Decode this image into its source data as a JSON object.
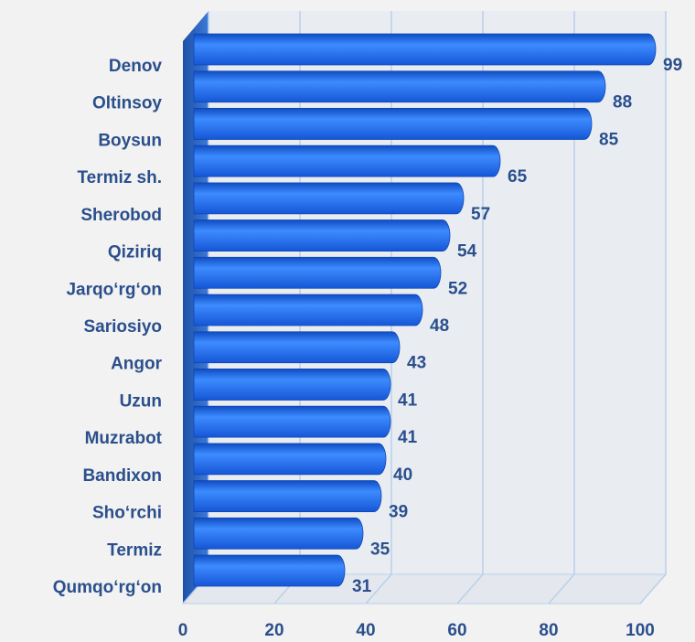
{
  "chart_data": {
    "type": "bar",
    "orientation": "horizontal",
    "categories": [
      "Denov",
      "Oltinsoy",
      "Boysun",
      "Termiz sh.",
      "Sherobod",
      "Qiziriq",
      "Jarqo‘rg‘on",
      "Sariosiyo",
      "Angor",
      "Uzun",
      "Muzrabot",
      "Bandixon",
      "Sho‘rchi",
      "Termiz",
      "Qumqo‘rg‘on"
    ],
    "values": [
      99,
      88,
      85,
      65,
      57,
      54,
      52,
      48,
      43,
      41,
      41,
      40,
      39,
      35,
      31
    ],
    "color": "#2f7bf0",
    "xlim": [
      0,
      100
    ],
    "xticks": [
      0,
      20,
      40,
      60,
      80,
      100
    ],
    "grid": true
  }
}
